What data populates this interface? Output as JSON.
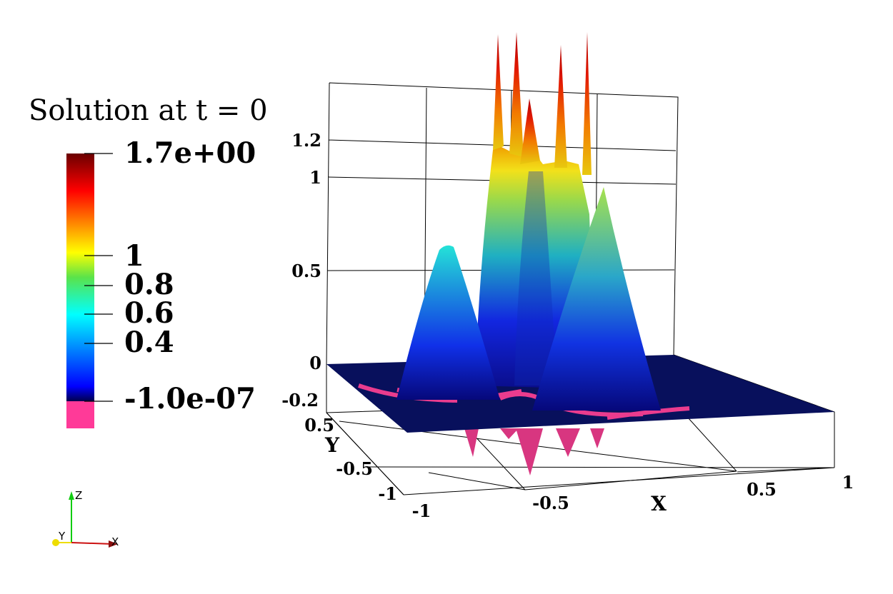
{
  "chart_data": {
    "type": "surface3d",
    "title": "Solution at t = 0",
    "colorbar": {
      "max_label": "1.7e+00",
      "min_label": "-1.0e-07",
      "ticks": [
        "1",
        "0.8",
        "0.6",
        "0.4"
      ],
      "range": [
        -1e-07,
        1.7
      ],
      "below_range_color": "#ff3a98",
      "colormap": [
        "#00004c",
        "#0000ff",
        "#00ffff",
        "#ffff00",
        "#ff0000",
        "#6b0000"
      ]
    },
    "axes": {
      "x": {
        "label": "X",
        "ticks": [
          "-1",
          "-0.5",
          "0.5",
          "1"
        ],
        "range": [
          -1,
          1
        ]
      },
      "y": {
        "label": "Y",
        "ticks": [
          "-1",
          "-0.5",
          "0.5"
        ],
        "range": [
          -1,
          1
        ]
      },
      "z": {
        "ticks": [
          "1.2",
          "1",
          "0.5",
          "0",
          "-0.2"
        ],
        "range": [
          -0.2,
          1.7
        ]
      }
    },
    "grid": true,
    "features": [
      {
        "name": "left cone",
        "peak": 0.63
      },
      {
        "name": "right cone",
        "peak": 0.9
      },
      {
        "name": "central hump",
        "peak": 1.0
      },
      {
        "name": "spike peak",
        "peak": 1.7
      }
    ]
  },
  "orientation_triad": {
    "x": "X",
    "y": "Y",
    "z": "Z"
  }
}
